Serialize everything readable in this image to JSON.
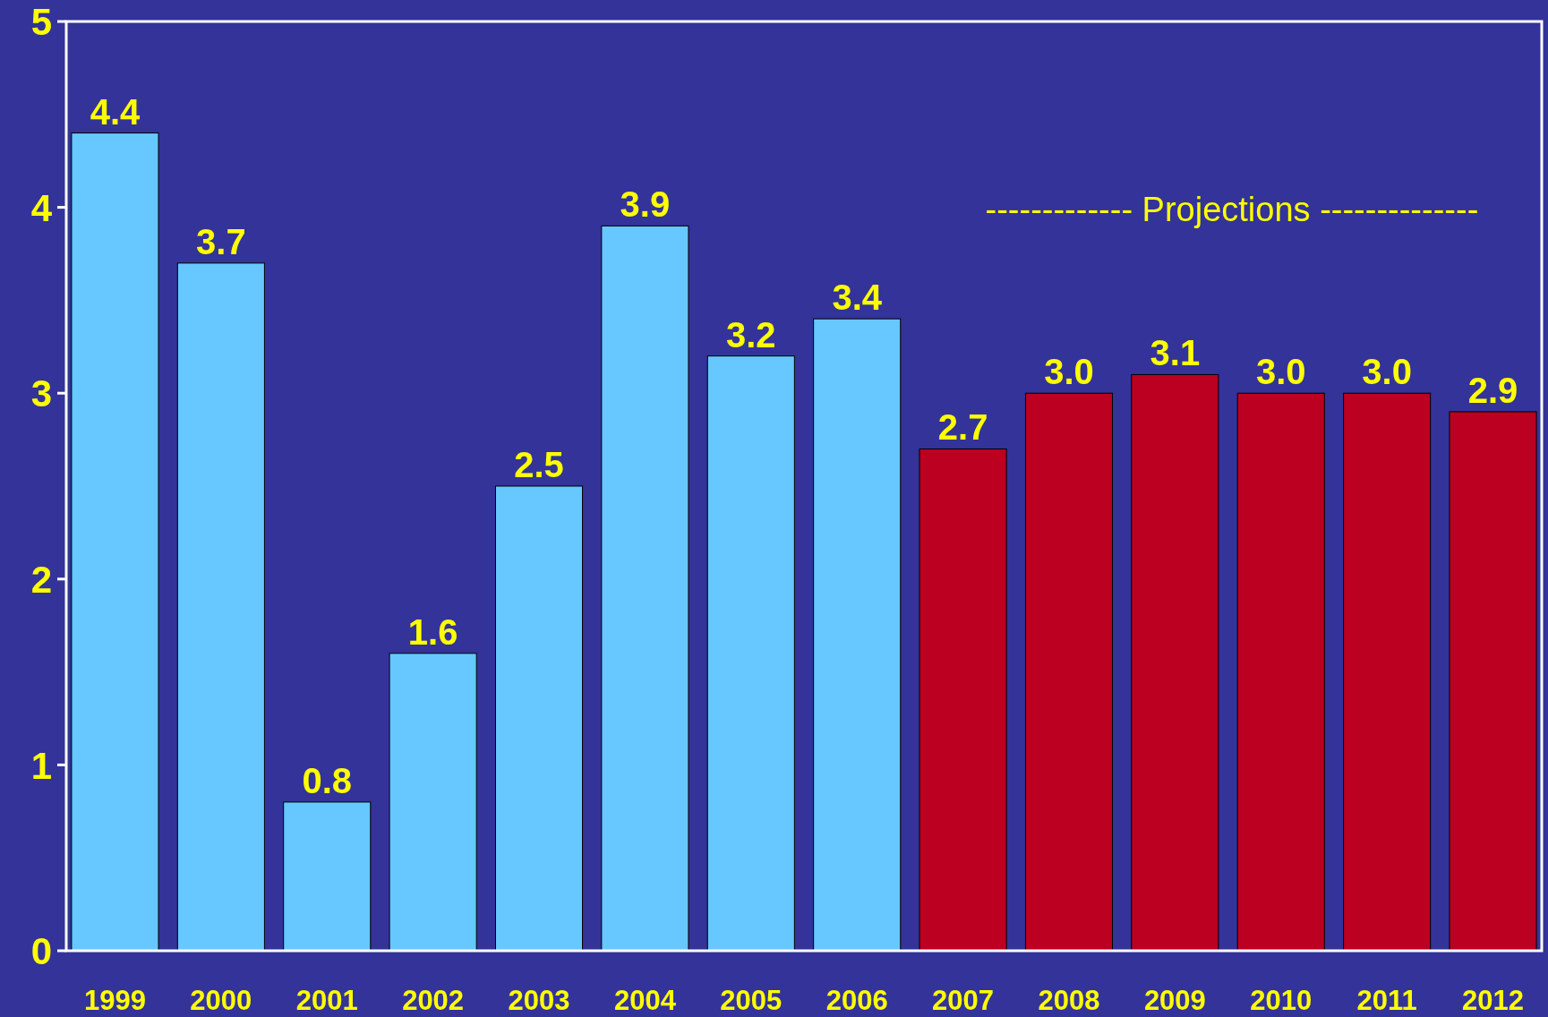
{
  "chart_data": {
    "type": "bar",
    "categories": [
      "1999",
      "2000",
      "2001",
      "2002",
      "2003",
      "2004",
      "2005",
      "2006",
      "2007",
      "2008",
      "2009",
      "2010",
      "2011",
      "2012"
    ],
    "values": [
      4.4,
      3.7,
      0.8,
      1.6,
      2.5,
      3.9,
      3.2,
      3.4,
      2.7,
      3.0,
      3.1,
      3.0,
      3.0,
      2.9
    ],
    "value_labels": [
      "4.4",
      "3.7",
      "0.8",
      "1.6",
      "2.5",
      "3.9",
      "3.2",
      "3.4",
      "2.7",
      "3.0",
      "3.1",
      "3.0",
      "3.0",
      "2.9"
    ],
    "colors": [
      "#66c8ff",
      "#66c8ff",
      "#66c8ff",
      "#66c8ff",
      "#66c8ff",
      "#66c8ff",
      "#66c8ff",
      "#66c8ff",
      "#bb0022",
      "#bb0022",
      "#bb0022",
      "#bb0022",
      "#bb0022",
      "#bb0022"
    ],
    "ylim": [
      0,
      5
    ],
    "yticks": [
      0,
      1,
      2,
      3,
      4,
      5
    ],
    "grid": false,
    "annotations": [
      "------------- Projections --------------"
    ]
  }
}
